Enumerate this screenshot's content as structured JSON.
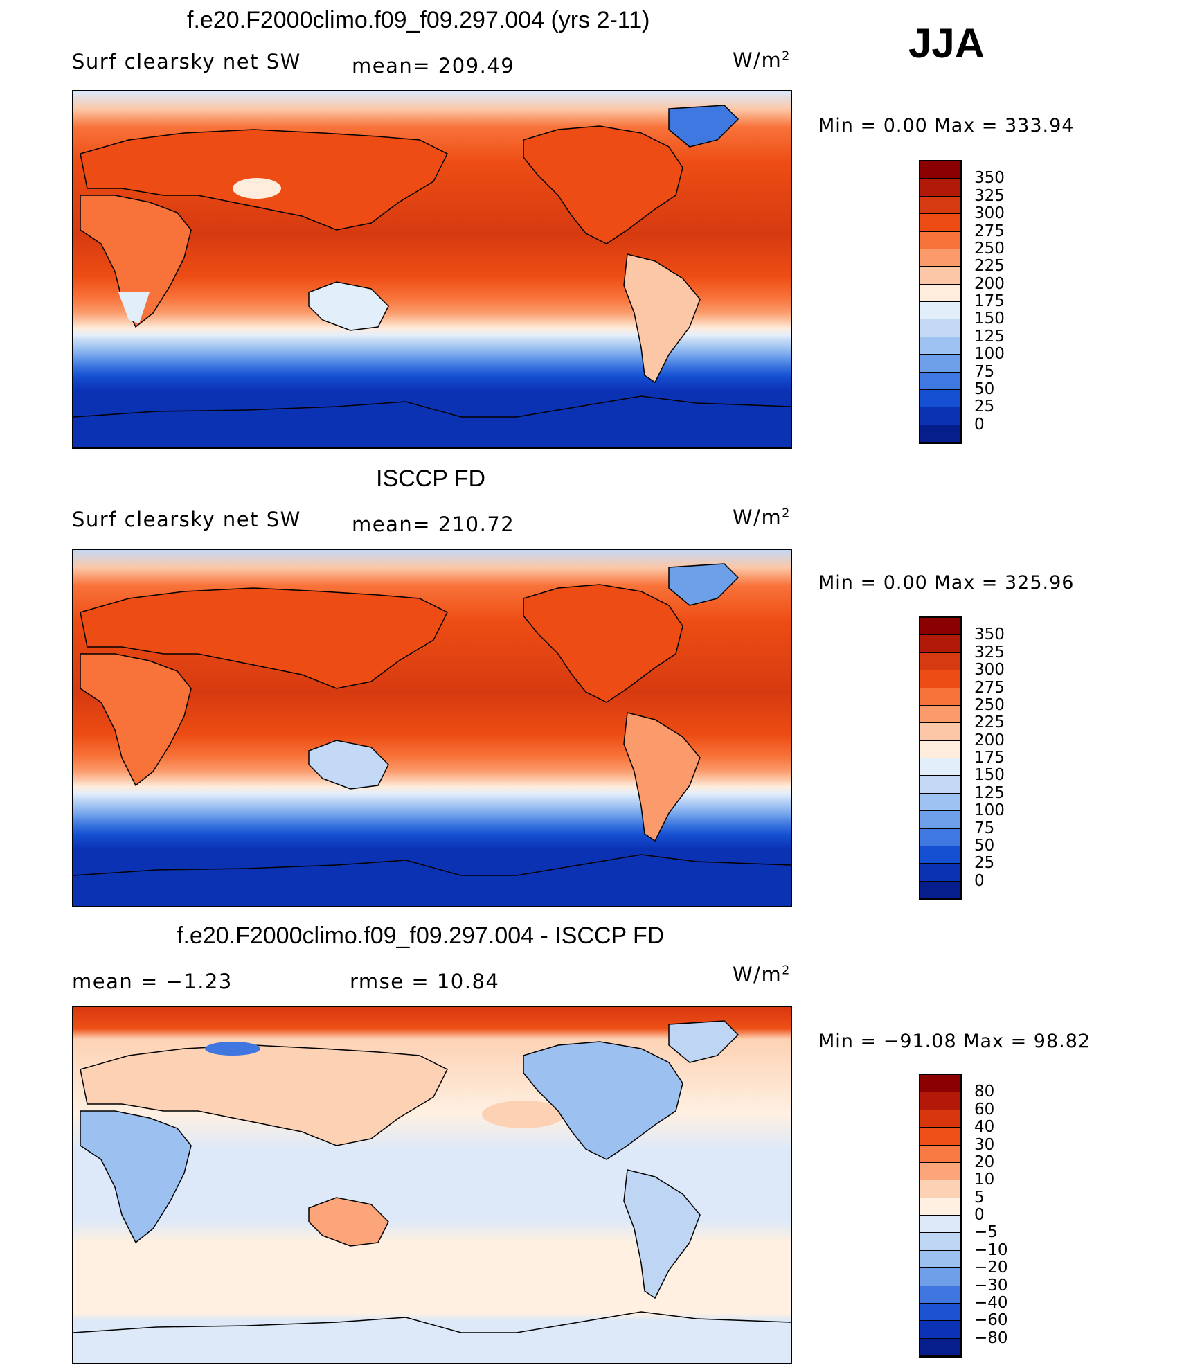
{
  "season": "JJA",
  "panels": [
    {
      "title": "f.e20.F2000climo.f09_f09.297.004 (yrs 2-11)",
      "left_label": "Surf clearsky net SW",
      "center_label": "mean= 209.49",
      "units_base": "W/m",
      "units_exp": "2",
      "minmax": "Min =    0.00 Max = 333.94",
      "map_image": "global-map-model-field"
    },
    {
      "title": "ISCCP FD",
      "left_label": "Surf clearsky net SW",
      "center_label": "mean= 210.72",
      "units_base": "W/m",
      "units_exp": "2",
      "minmax": "Min =    0.00 Max = 325.96",
      "map_image": "global-map-observed-field"
    },
    {
      "title": "f.e20.F2000climo.f09_f09.297.004 - ISCCP FD",
      "left_label": "mean =   −1.23",
      "center_label": "rmse =   10.84",
      "units_base": "W/m",
      "units_exp": "2",
      "minmax": "Min = −91.08 Max =  98.82",
      "map_image": "global-map-difference-field"
    }
  ],
  "colorbars": {
    "field": {
      "labels": [
        "350",
        "325",
        "300",
        "275",
        "250",
        "225",
        "200",
        "175",
        "150",
        "125",
        "100",
        "75",
        "50",
        "25",
        "0"
      ],
      "colors": [
        "#8b0000",
        "#b11a08",
        "#d63a10",
        "#ed4d14",
        "#f8733a",
        "#fb9a6a",
        "#fcc7a6",
        "#feecdc",
        "#e3eefb",
        "#c3d9f6",
        "#9ec2f2",
        "#6ea0ea",
        "#3f78e0",
        "#1550d2",
        "#0c32b4",
        "#061e8c"
      ]
    },
    "diff": {
      "labels": [
        "80",
        "60",
        "40",
        "30",
        "20",
        "10",
        "5",
        "0",
        "−5",
        "−10",
        "−20",
        "−30",
        "−40",
        "−60",
        "−80"
      ],
      "colors": [
        "#8b0000",
        "#b31808",
        "#d8370e",
        "#ee5018",
        "#f97a42",
        "#fca57a",
        "#fdd2b4",
        "#fff0e2",
        "#dde9f8",
        "#bed6f3",
        "#9cc0f0",
        "#6f9fe9",
        "#3f76df",
        "#1a52d2",
        "#0c33b6",
        "#061e8c"
      ]
    }
  },
  "chart_data": [
    {
      "type": "heatmap",
      "title": "f.e20.F2000climo.f09_f09.297.004 (yrs 2-11)",
      "variable": "Surf clearsky net SW",
      "units": "W/m2",
      "mean": 209.49,
      "min": 0.0,
      "max": 333.94,
      "colorbar_levels": [
        0,
        25,
        50,
        75,
        100,
        125,
        150,
        175,
        200,
        225,
        250,
        275,
        300,
        325,
        350
      ],
      "season": "JJA"
    },
    {
      "type": "heatmap",
      "title": "ISCCP FD",
      "variable": "Surf clearsky net SW",
      "units": "W/m2",
      "mean": 210.72,
      "min": 0.0,
      "max": 325.96,
      "colorbar_levels": [
        0,
        25,
        50,
        75,
        100,
        125,
        150,
        175,
        200,
        225,
        250,
        275,
        300,
        325,
        350
      ],
      "season": "JJA"
    },
    {
      "type": "heatmap",
      "title": "f.e20.F2000climo.f09_f09.297.004 - ISCCP FD",
      "units": "W/m2",
      "mean": -1.23,
      "rmse": 10.84,
      "min": -91.08,
      "max": 98.82,
      "colorbar_levels": [
        -80,
        -60,
        -40,
        -30,
        -20,
        -10,
        -5,
        0,
        5,
        10,
        20,
        30,
        40,
        60,
        80
      ],
      "season": "JJA"
    }
  ]
}
